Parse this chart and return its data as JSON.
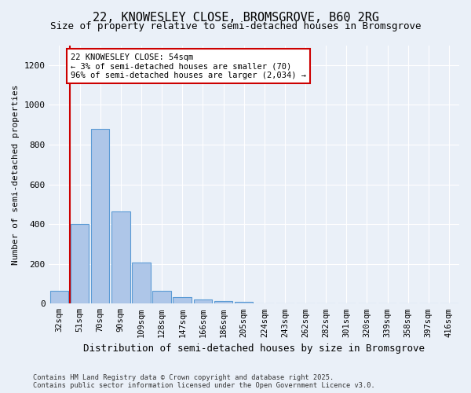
{
  "title1": "22, KNOWESLEY CLOSE, BROMSGROVE, B60 2RG",
  "title2": "Size of property relative to semi-detached houses in Bromsgrove",
  "xlabel": "Distribution of semi-detached houses by size in Bromsgrove",
  "ylabel": "Number of semi-detached properties",
  "categories": [
    "32sqm",
    "51sqm",
    "70sqm",
    "90sqm",
    "109sqm",
    "128sqm",
    "147sqm",
    "166sqm",
    "186sqm",
    "205sqm",
    "224sqm",
    "243sqm",
    "262sqm",
    "282sqm",
    "301sqm",
    "320sqm",
    "339sqm",
    "358sqm",
    "397sqm",
    "416sqm"
  ],
  "values": [
    65,
    400,
    880,
    465,
    205,
    65,
    32,
    20,
    14,
    10,
    0,
    0,
    0,
    0,
    0,
    0,
    0,
    0,
    0,
    0
  ],
  "bar_color": "#aec6e8",
  "bar_edge_color": "#5b9bd5",
  "vline_color": "#cc0000",
  "annotation_text": "22 KNOWESLEY CLOSE: 54sqm\n← 3% of semi-detached houses are smaller (70)\n96% of semi-detached houses are larger (2,034) →",
  "annotation_box_color": "#ffffff",
  "annotation_box_edge": "#cc0000",
  "ylim": [
    0,
    1300
  ],
  "yticks": [
    0,
    200,
    400,
    600,
    800,
    1000,
    1200
  ],
  "background_color": "#eaf0f8",
  "footer": "Contains HM Land Registry data © Crown copyright and database right 2025.\nContains public sector information licensed under the Open Government Licence v3.0.",
  "figsize": [
    6.0,
    5.0
  ],
  "dpi": 100
}
